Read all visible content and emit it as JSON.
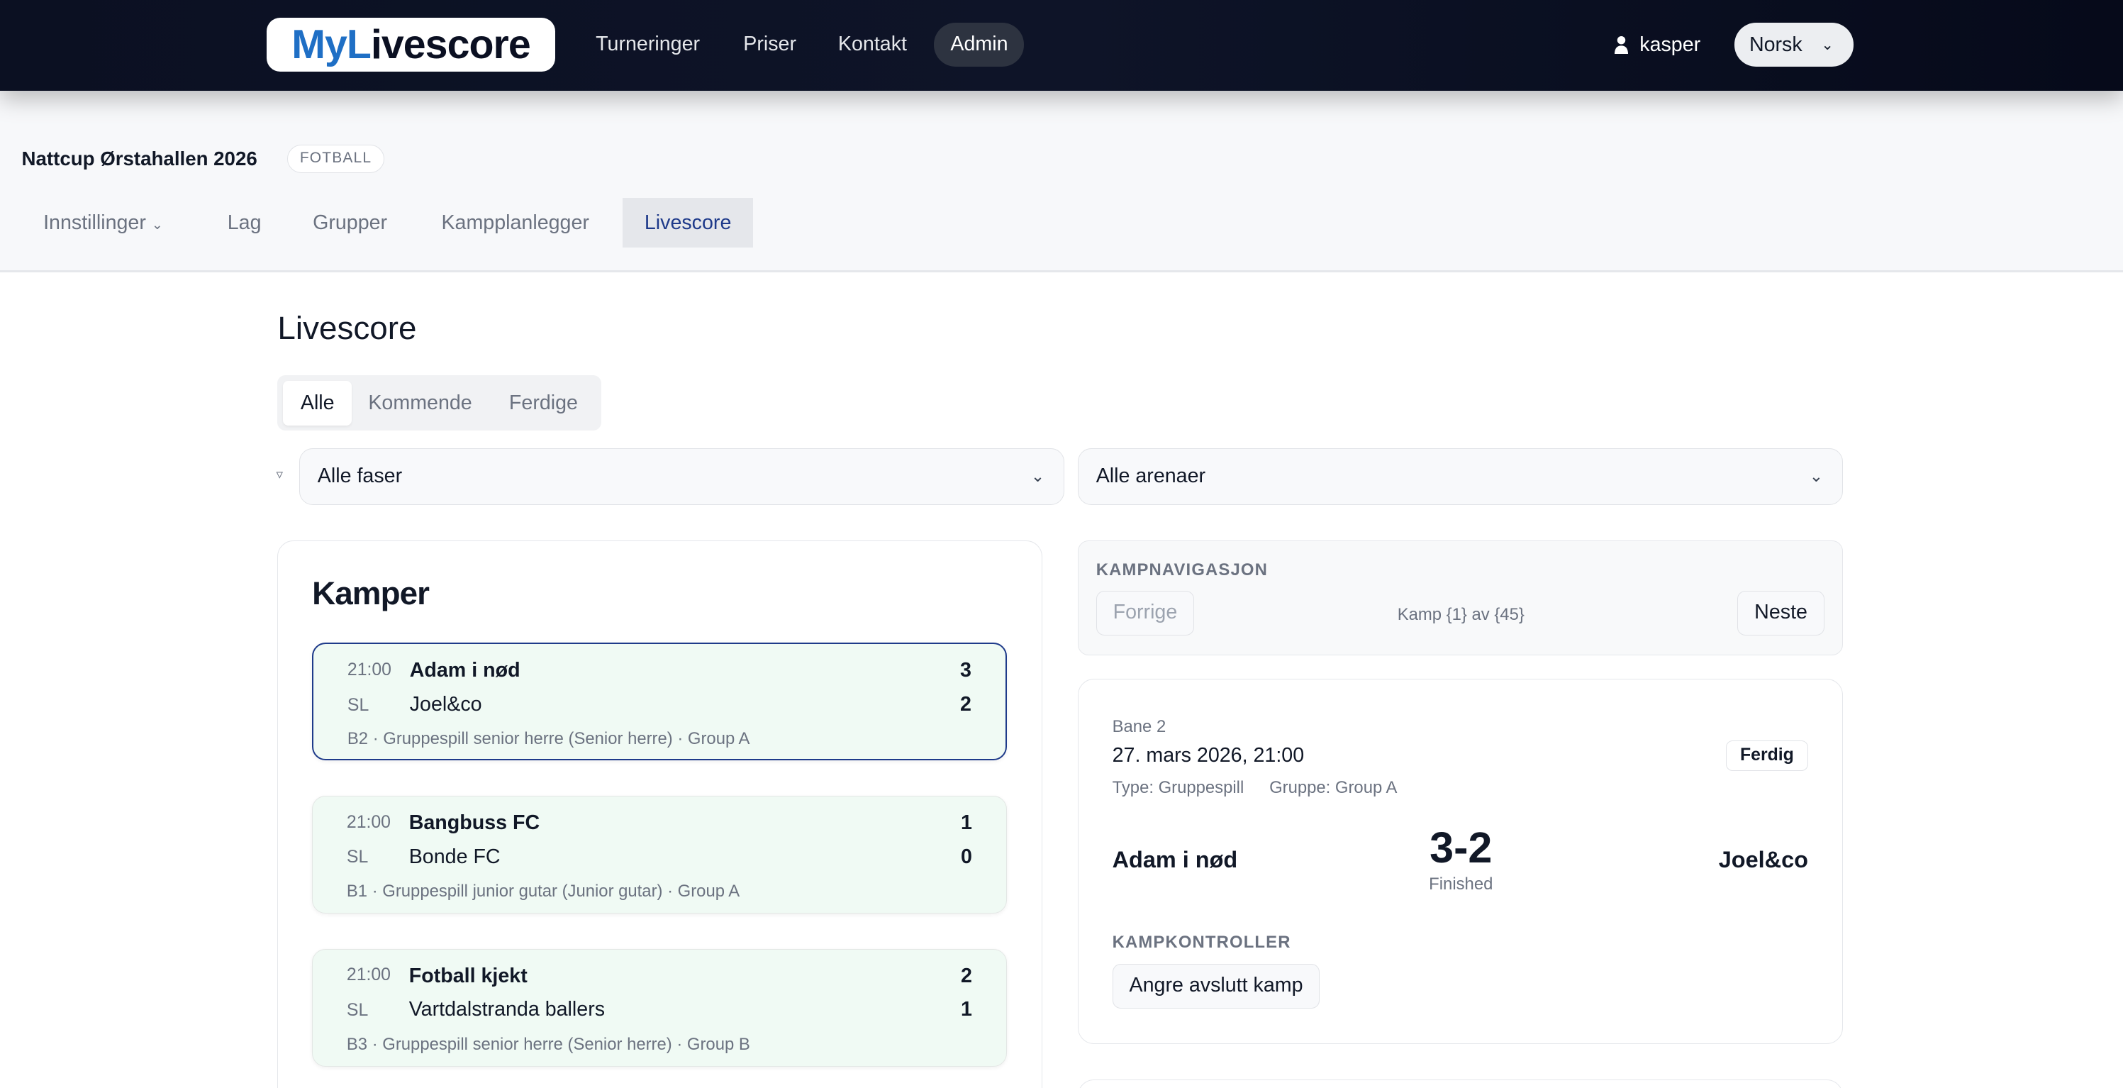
{
  "header": {
    "logo_prefix": "My",
    "logo_l": "L",
    "logo_rest": "ivescore",
    "nav": [
      "Turneringer",
      "Priser",
      "Kontakt",
      "Admin"
    ],
    "active_nav": "Admin",
    "user": "kasper",
    "language": "Norsk",
    "brand_color": "#1f6fc5"
  },
  "tournament": {
    "title": "Nattcup Ørstahallen 2026",
    "sport_badge": "FOTBALL",
    "tabs": [
      "Innstillinger",
      "Lag",
      "Grupper",
      "Kampplanlegger",
      "Livescore"
    ],
    "active_tab": "Livescore"
  },
  "main": {
    "title": "Livescore",
    "segments": [
      "Alle",
      "Kommende",
      "Ferdige"
    ],
    "active_segment": "Alle",
    "phase_filter": "Alle faser",
    "arena_filter": "Alle arenaer"
  },
  "matches": {
    "title": "Kamper",
    "items": [
      {
        "time": "21:00",
        "status": "SL",
        "home": "Adam i nød",
        "away": "Joel&co",
        "home_score": "3",
        "away_score": "2",
        "meta": "B2 · Gruppespill senior herre (Senior herre) · Group A",
        "selected": true
      },
      {
        "time": "21:00",
        "status": "SL",
        "home": "Bangbuss FC",
        "away": "Bonde FC",
        "home_score": "1",
        "away_score": "0",
        "meta": "B1 · Gruppespill junior gutar (Junior gutar) · Group A"
      },
      {
        "time": "21:00",
        "status": "SL",
        "home": "Fotball kjekt",
        "away": "Vartdalstranda ballers",
        "home_score": "2",
        "away_score": "1",
        "meta": "B3 · Gruppespill senior herre (Senior herre) · Group B"
      }
    ]
  },
  "navigation": {
    "label": "KAMPNAVIGASJON",
    "prev": "Forrige",
    "counter": "Kamp {1} av {45}",
    "next": "Neste"
  },
  "detail": {
    "venue": "Bane 2",
    "datetime": "27. mars 2026, 21:00",
    "status_badge": "Ferdig",
    "type": "Type: Gruppespill",
    "group": "Gruppe: Group A",
    "home": "Adam i nød",
    "away": "Joel&co",
    "score": "3-2",
    "state": "Finished",
    "controls_label": "KAMPKONTROLLER",
    "undo_button": "Angre avslutt kamp"
  }
}
